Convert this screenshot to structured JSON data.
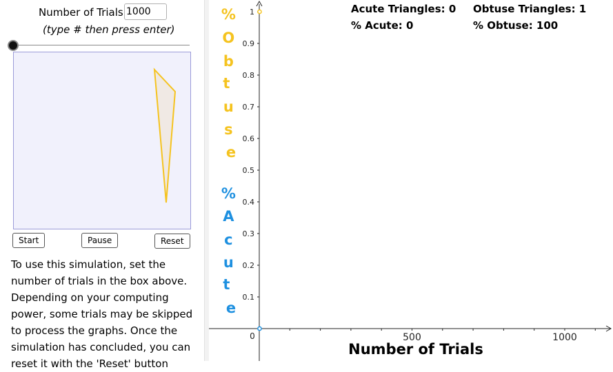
{
  "controls": {
    "trials_label": "Number of Trials:",
    "trials_value": "1000",
    "trials_hint": "(type # then press enter)",
    "slider_value": 0,
    "start_label": "Start",
    "pause_label": "Pause",
    "reset_label": "Reset"
  },
  "instructions": "To use this simulation, set the number of trials in the box above. Depending on your computing power, some trials may be skipped to process the graphs. Once the simulation has concluded, you can reset it with the 'Reset' button",
  "stats": {
    "acute_label": "Acute Triangles: 0",
    "obtuse_label": "Obtuse Triangles: 1",
    "pct_acute_label": "% Acute: 0",
    "pct_obtuse_label": "% Obtuse:  100"
  },
  "colors": {
    "obtuse": "#f5c31f",
    "acute": "#1e90e0",
    "panel_bg": "#f1f1fc",
    "panel_border": "#9a9ad8"
  },
  "chart_data": {
    "type": "scatter",
    "xlabel": "Number of Trials",
    "ylabel_obtuse": "% Obtuse",
    "ylabel_acute": "% Acute",
    "x_ticks": [
      "500",
      "1000"
    ],
    "y_ticks": [
      "0.1",
      "0.2",
      "0.3",
      "0.4",
      "0.5",
      "0.6",
      "0.7",
      "0.8",
      "0.9",
      "1"
    ],
    "origin_label": "0",
    "xlim": [
      0,
      1000
    ],
    "ylim": [
      0,
      1
    ],
    "series": [
      {
        "name": "% Obtuse",
        "color": "#f5c31f",
        "points": [
          [
            1,
            1
          ]
        ]
      },
      {
        "name": "% Acute",
        "color": "#1e90e0",
        "points": [
          [
            1,
            0
          ]
        ]
      }
    ]
  }
}
